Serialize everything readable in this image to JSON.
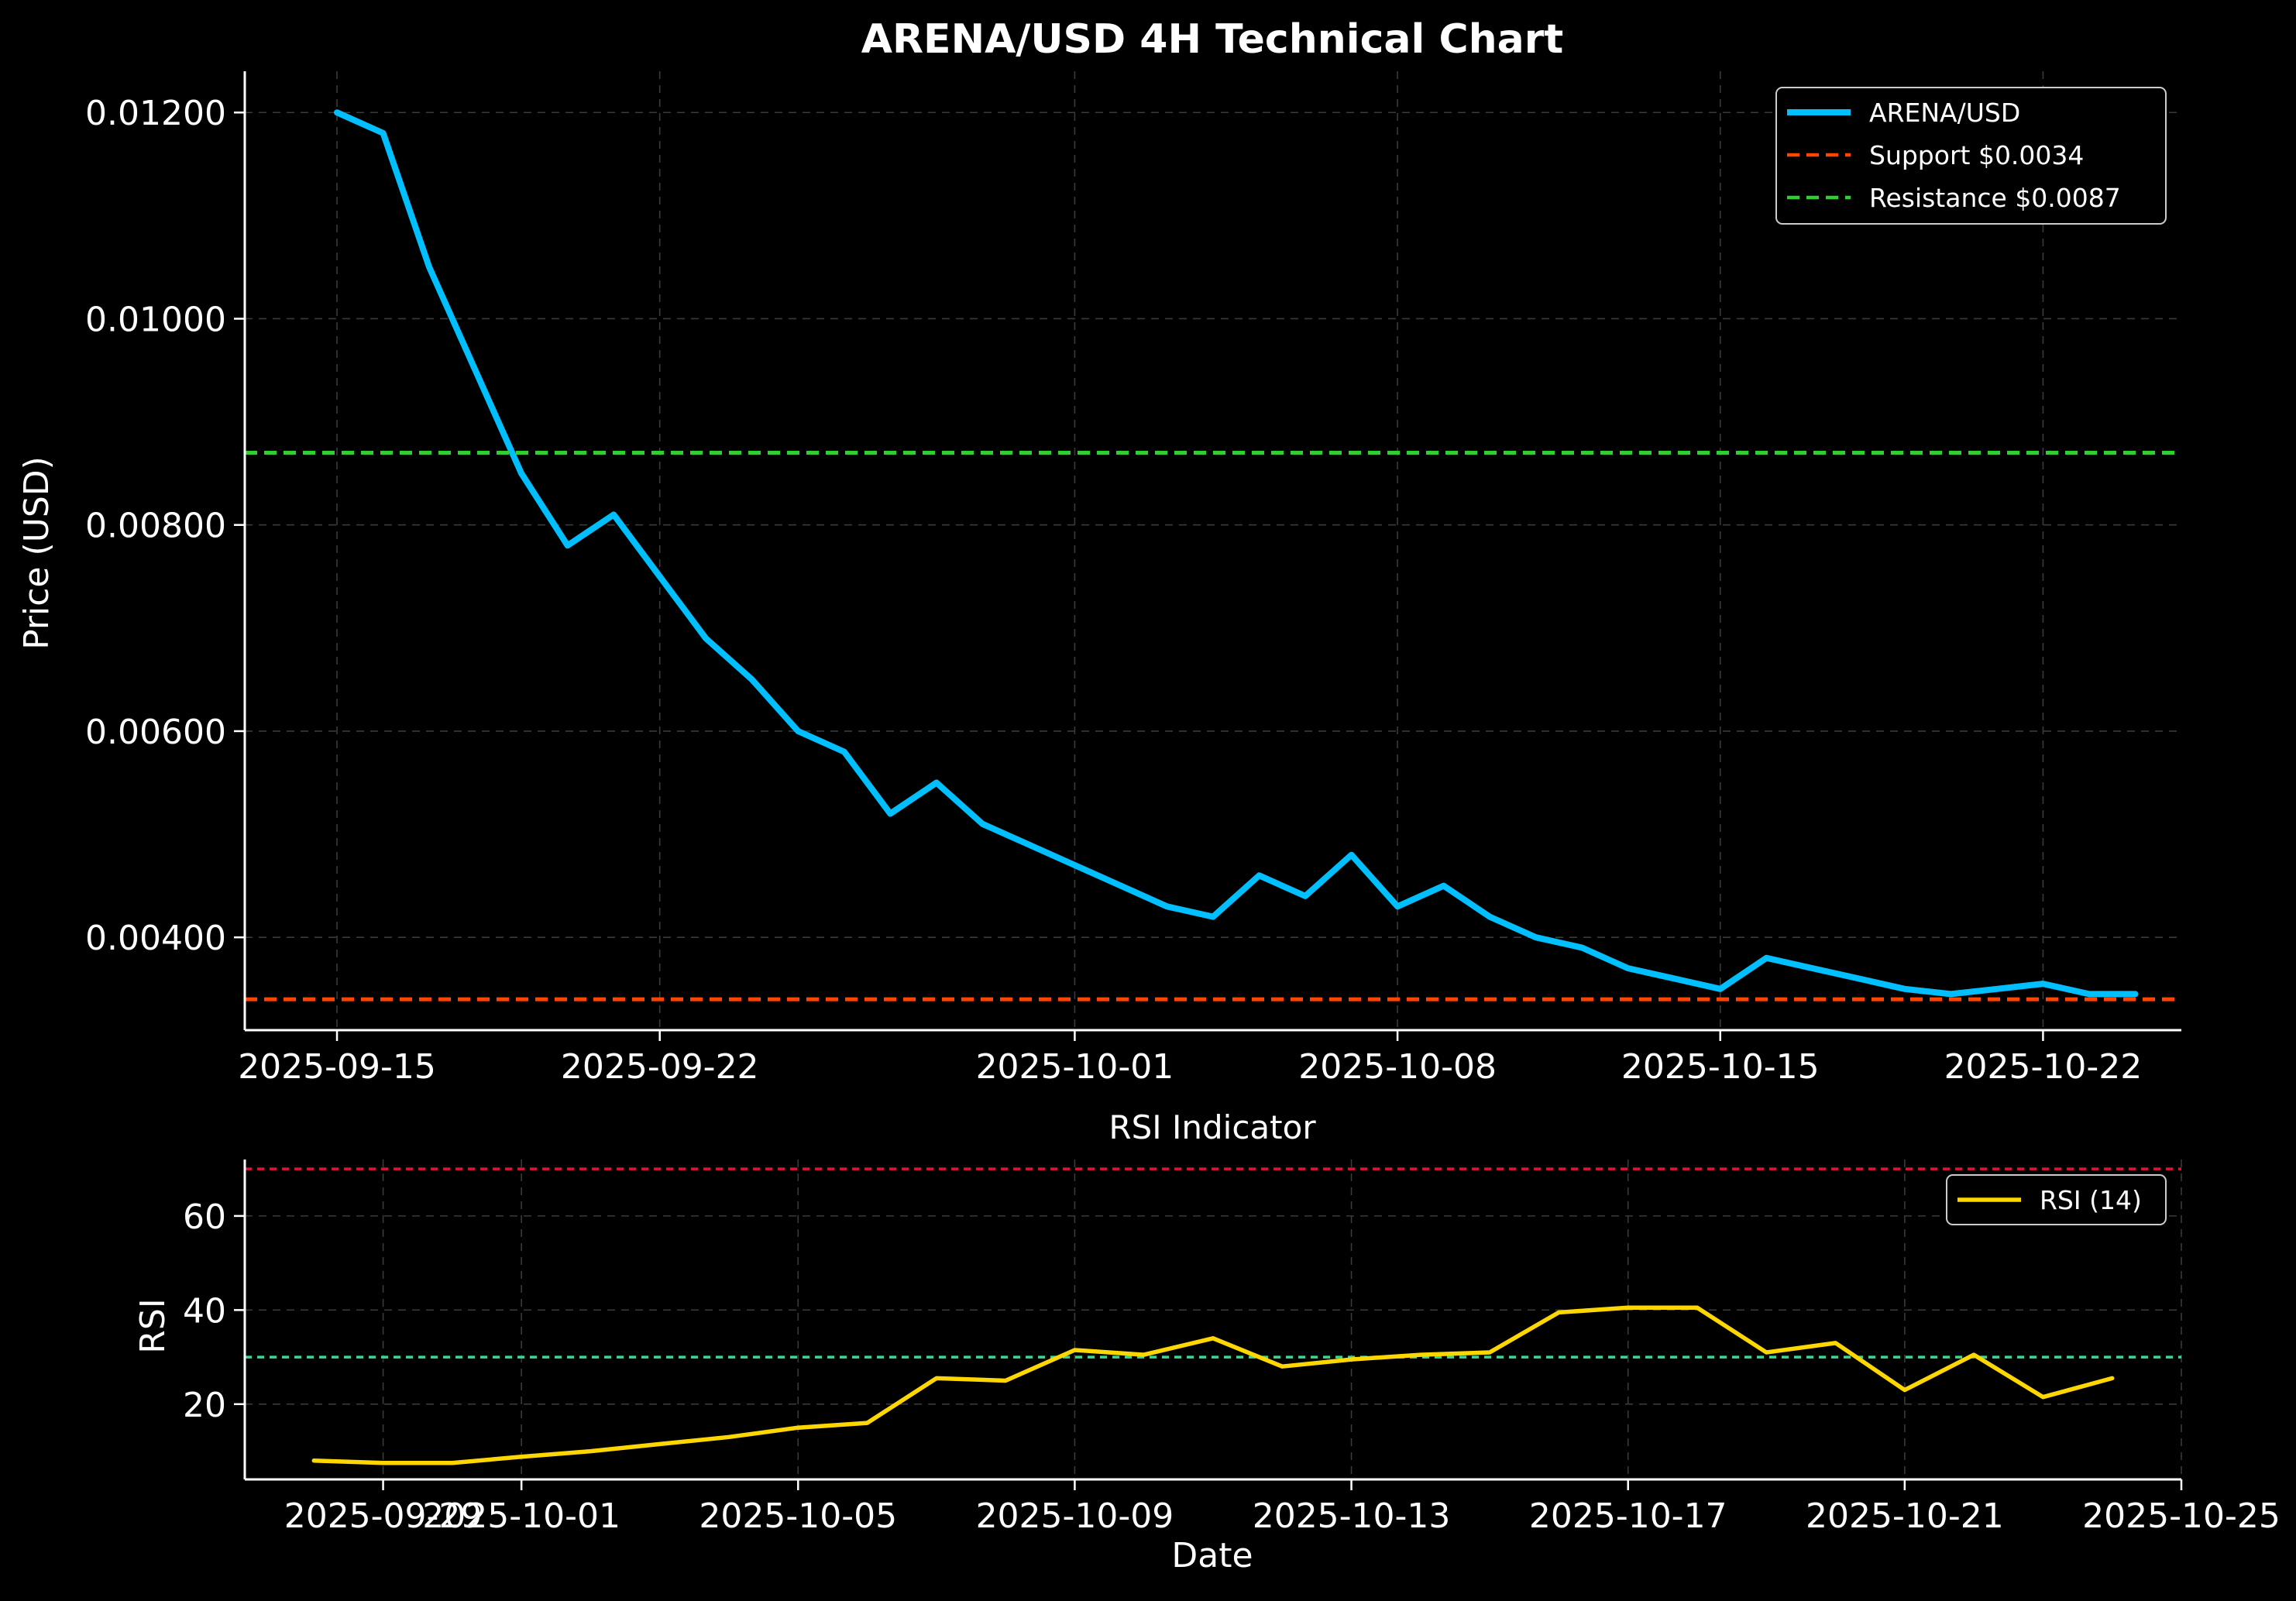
{
  "title": "ARENA/USD 4H Technical Chart",
  "chart_data": [
    {
      "type": "line",
      "panel": "price",
      "title": "ARENA/USD 4H Technical Chart",
      "xlabel": "",
      "ylabel": "Price (USD)",
      "xlim": [
        "2025-09-13",
        "2025-10-25"
      ],
      "ylim": [
        0.0031,
        0.0124
      ],
      "x_ticks": [
        "2025-09-15",
        "2025-09-22",
        "2025-10-01",
        "2025-10-08",
        "2025-10-15",
        "2025-10-22"
      ],
      "y_ticks": [
        0.004,
        0.006,
        0.008,
        0.01,
        0.012
      ],
      "y_tick_labels": [
        "0.00400",
        "0.00600",
        "0.00800",
        "0.01000",
        "0.01200"
      ],
      "grid": true,
      "legend_position": "top-right",
      "series": [
        {
          "name": "ARENA/USD",
          "color": "#00bfff",
          "style": "solid",
          "x": [
            "2025-09-15",
            "2025-09-16",
            "2025-09-17",
            "2025-09-18",
            "2025-09-19",
            "2025-09-20",
            "2025-09-21",
            "2025-09-22",
            "2025-09-23",
            "2025-09-24",
            "2025-09-25",
            "2025-09-26",
            "2025-09-27",
            "2025-09-28",
            "2025-09-29",
            "2025-09-30",
            "2025-10-01",
            "2025-10-02",
            "2025-10-03",
            "2025-10-04",
            "2025-10-05",
            "2025-10-06",
            "2025-10-07",
            "2025-10-08",
            "2025-10-09",
            "2025-10-10",
            "2025-10-11",
            "2025-10-12",
            "2025-10-13",
            "2025-10-14",
            "2025-10-15",
            "2025-10-16",
            "2025-10-17",
            "2025-10-18",
            "2025-10-19",
            "2025-10-20",
            "2025-10-21",
            "2025-10-22",
            "2025-10-23",
            "2025-10-24"
          ],
          "values": [
            0.012,
            0.0118,
            0.0105,
            0.0095,
            0.0085,
            0.0078,
            0.0081,
            0.0075,
            0.0069,
            0.0065,
            0.006,
            0.0058,
            0.0052,
            0.0055,
            0.0051,
            0.0049,
            0.0047,
            0.0045,
            0.0043,
            0.0042,
            0.0046,
            0.0044,
            0.0048,
            0.0043,
            0.0045,
            0.0042,
            0.004,
            0.0039,
            0.0037,
            0.0036,
            0.0035,
            0.0038,
            0.0037,
            0.0036,
            0.0035,
            0.00345,
            0.0035,
            0.00355,
            0.00345,
            0.00345
          ]
        },
        {
          "name": "Support $0.0034",
          "color": "#ff4500",
          "style": "dashed",
          "value": 0.0034
        },
        {
          "name": "Resistance $0.0087",
          "color": "#32cd32",
          "style": "dashed",
          "value": 0.0087
        }
      ]
    },
    {
      "type": "line",
      "panel": "rsi",
      "title": "RSI Indicator",
      "xlabel": "Date",
      "ylabel": "RSI",
      "xlim": [
        "2025-09-27",
        "2025-10-25"
      ],
      "ylim": [
        4,
        72
      ],
      "x_ticks": [
        "2025-09-29",
        "2025-10-01",
        "2025-10-05",
        "2025-10-09",
        "2025-10-13",
        "2025-10-17",
        "2025-10-21",
        "2025-10-25"
      ],
      "y_ticks": [
        20,
        40,
        60
      ],
      "grid": true,
      "legend_position": "top-right",
      "reference_lines": [
        {
          "value": 70,
          "color": "#dc143c",
          "style": "dashed"
        },
        {
          "value": 30,
          "color": "#3cd890",
          "style": "dashed"
        }
      ],
      "series": [
        {
          "name": "RSI (14)",
          "color": "#ffd700",
          "style": "solid",
          "x": [
            "2025-09-28",
            "2025-09-29",
            "2025-09-30",
            "2025-10-01",
            "2025-10-02",
            "2025-10-03",
            "2025-10-04",
            "2025-10-05",
            "2025-10-06",
            "2025-10-07",
            "2025-10-08",
            "2025-10-09",
            "2025-10-10",
            "2025-10-11",
            "2025-10-12",
            "2025-10-13",
            "2025-10-14",
            "2025-10-15",
            "2025-10-16",
            "2025-10-17",
            "2025-10-18",
            "2025-10-19",
            "2025-10-20",
            "2025-10-21",
            "2025-10-22",
            "2025-10-23",
            "2025-10-24"
          ],
          "values": [
            8,
            7.5,
            7.5,
            8.8,
            10,
            11.5,
            13,
            15,
            16,
            25.5,
            25,
            31.5,
            30.5,
            34,
            28,
            29.5,
            30.5,
            31,
            39.5,
            40.5,
            40.5,
            31,
            33,
            23,
            30.5,
            21.5,
            25.5
          ]
        }
      ]
    }
  ]
}
